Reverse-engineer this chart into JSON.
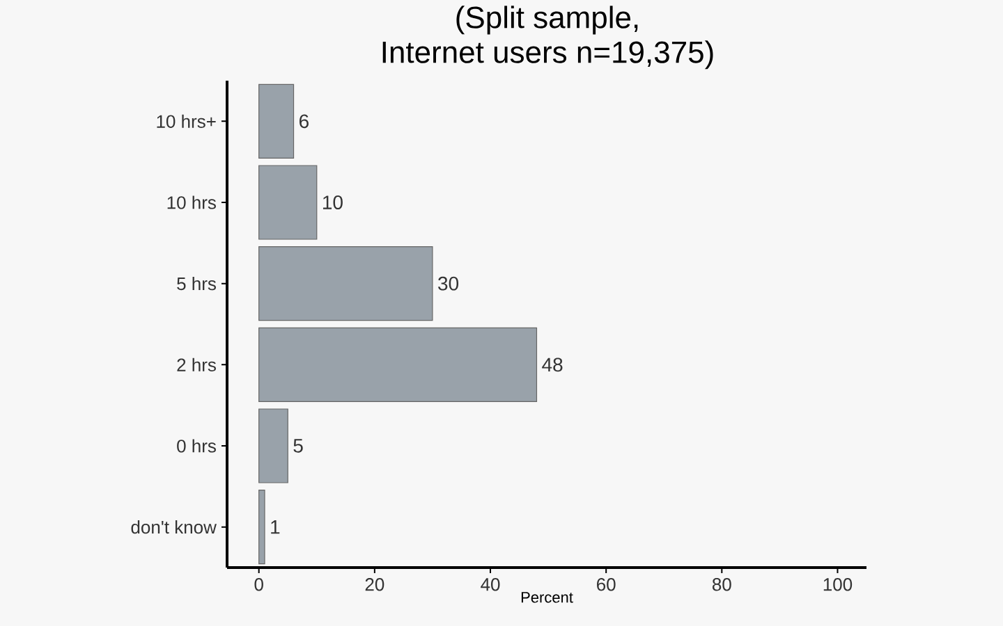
{
  "chart_data": {
    "type": "bar",
    "orientation": "horizontal",
    "title": "(Split sample,\nInternet users n=19,375)",
    "xlabel": "Percent",
    "categories": [
      "10 hrs+",
      "10 hrs",
      "5 hrs",
      "2 hrs",
      "0 hrs",
      "don't know"
    ],
    "values": [
      6,
      10,
      30,
      48,
      5,
      1
    ],
    "color": "#99a2aa",
    "xlim": [
      -5.5,
      105
    ],
    "xticks": [
      0,
      20,
      40,
      60,
      80,
      100
    ],
    "data_labels": true,
    "grid": false
  }
}
